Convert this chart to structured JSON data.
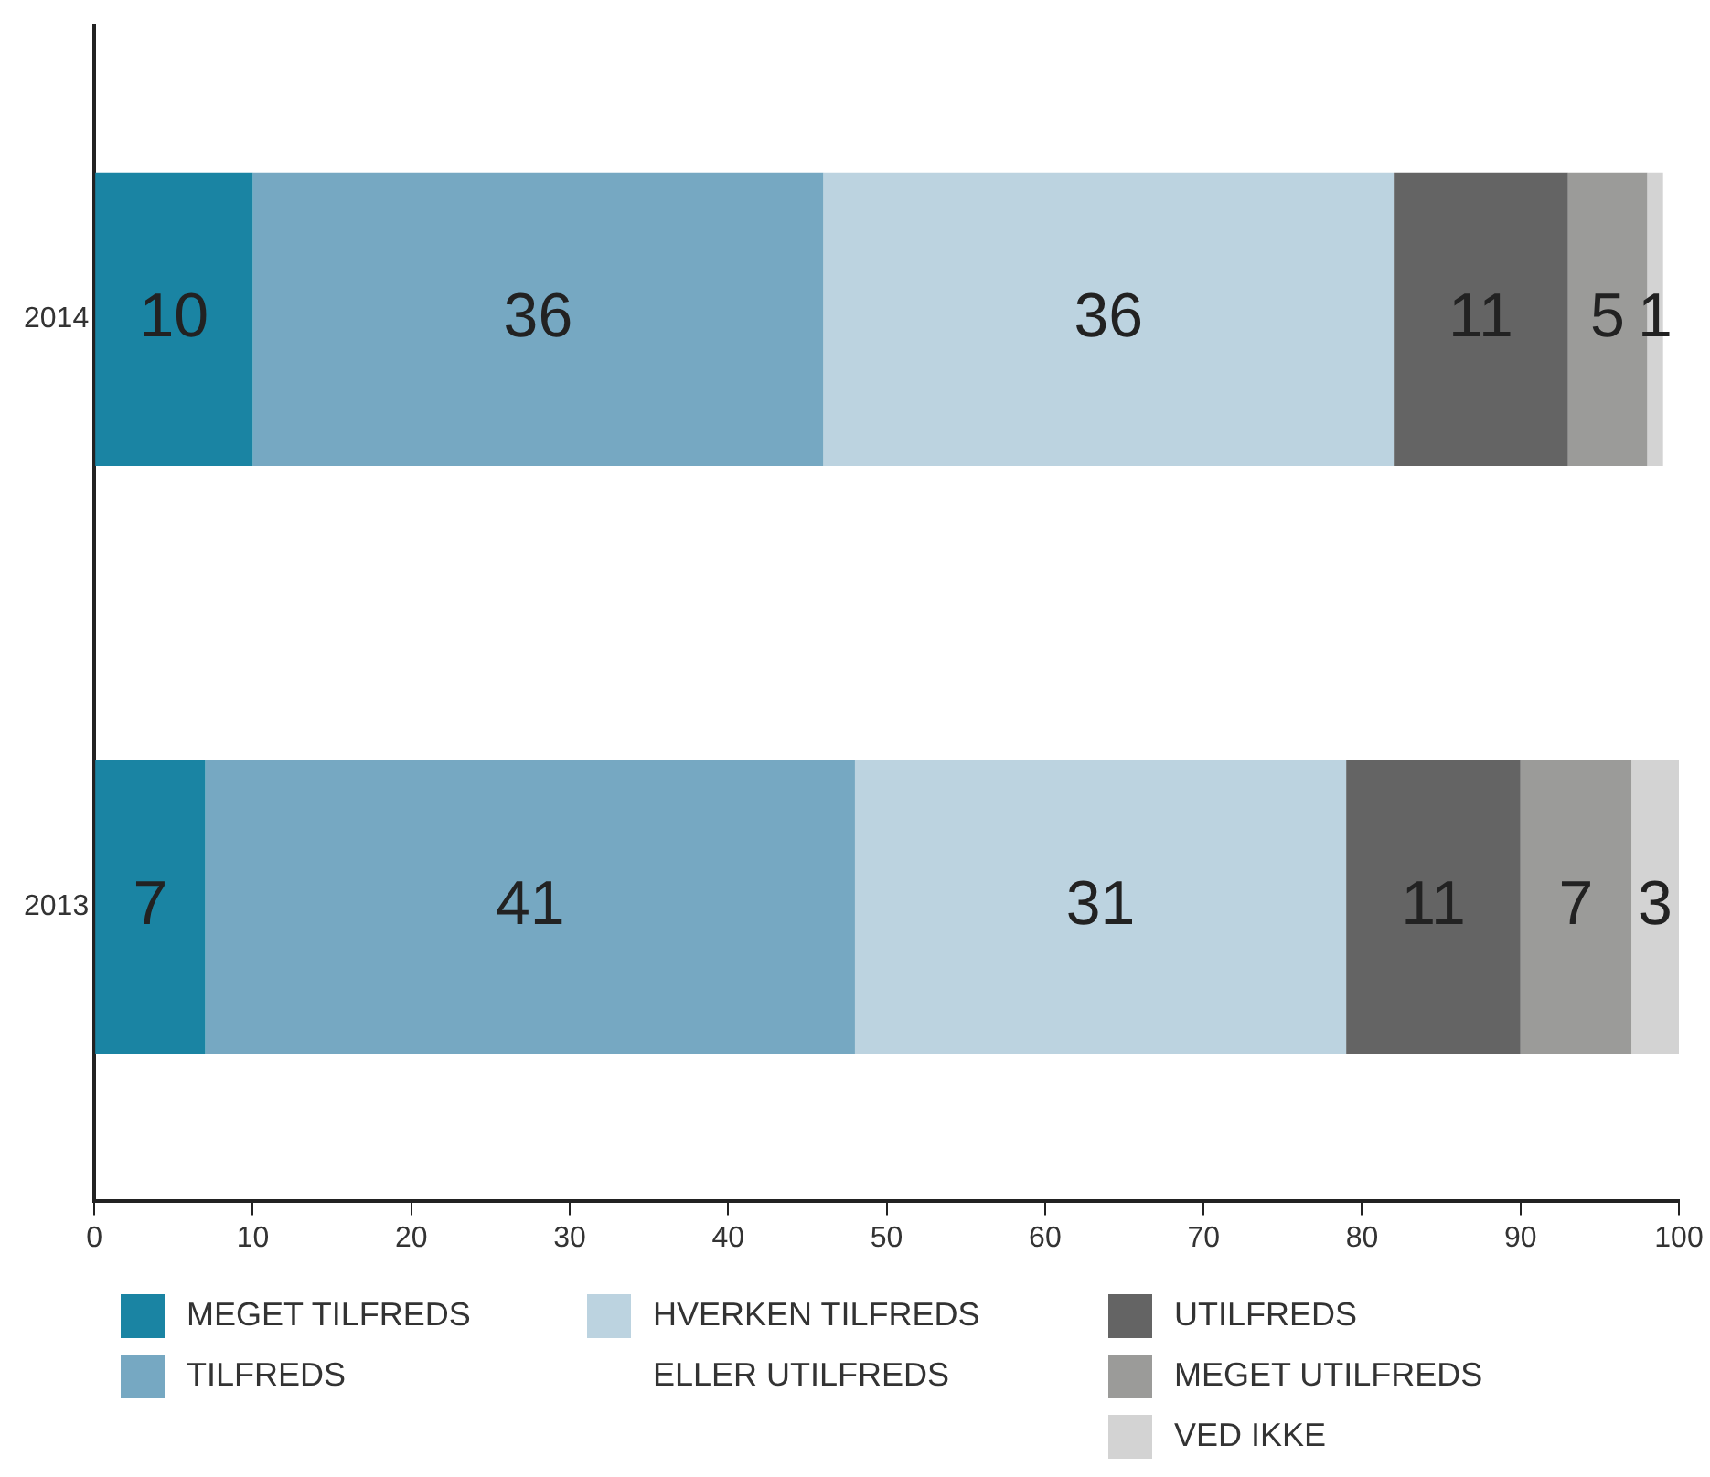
{
  "chart_data": {
    "type": "bar",
    "orientation": "horizontal",
    "stacked": true,
    "data_labels": true,
    "grid": false,
    "legend": "bottom",
    "categories": [
      "2014",
      "2013"
    ],
    "xlim": [
      0,
      100
    ],
    "xticks": [
      0,
      10,
      20,
      30,
      40,
      50,
      60,
      70,
      80,
      90,
      100
    ],
    "series": [
      {
        "name": "MEGET TILFREDS",
        "color": "#1a84a3",
        "values": [
          10,
          7
        ]
      },
      {
        "name": "TILFREDS",
        "color": "#76a8c2",
        "values": [
          36,
          41
        ]
      },
      {
        "name": "HVERKEN TILFREDS ELLER UTILFREDS",
        "color": "#bcd3e0",
        "values": [
          36,
          31
        ]
      },
      {
        "name": "UTILFREDS",
        "color": "#646464",
        "values": [
          11,
          11
        ]
      },
      {
        "name": "MEGET UTILFREDS",
        "color": "#9b9b99",
        "values": [
          5,
          7
        ]
      },
      {
        "name": "VED IKKE",
        "color": "#d3d3d3",
        "values": [
          1,
          3
        ]
      }
    ]
  }
}
